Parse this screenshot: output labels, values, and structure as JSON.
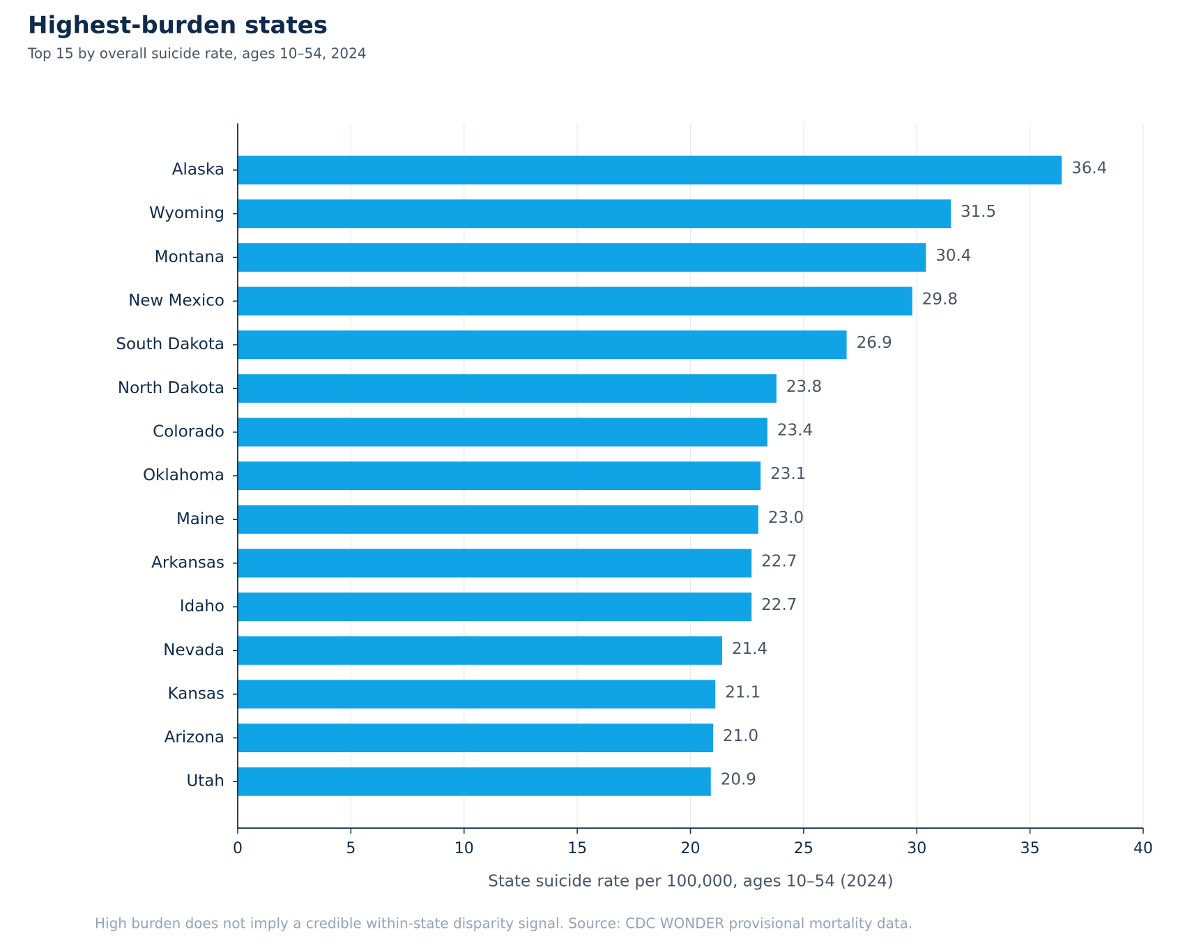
{
  "chart_data": {
    "type": "hbar",
    "title": "Highest-burden states",
    "subtitle": "Top 15 by overall suicide rate, ages 10–54, 2024",
    "x_label": "State suicide rate per 100,000, ages 10–54 (2024)",
    "footnote": "High burden does not imply a credible within-state disparity signal. Source: CDC WONDER provisional mortality data.",
    "categories": [
      "Alaska",
      "Wyoming",
      "Montana",
      "New Mexico",
      "South Dakota",
      "North Dakota",
      "Colorado",
      "Oklahoma",
      "Maine",
      "Arkansas",
      "Idaho",
      "Nevada",
      "Kansas",
      "Arizona",
      "Utah"
    ],
    "values": [
      36.4,
      31.5,
      30.4,
      29.8,
      26.9,
      23.8,
      23.4,
      23.1,
      23.0,
      22.7,
      22.7,
      21.4,
      21.1,
      21.0,
      20.9
    ],
    "value_labels": [
      "36.4",
      "31.5",
      "30.4",
      "29.8",
      "26.9",
      "23.8",
      "23.4",
      "23.1",
      "23.0",
      "22.7",
      "22.7",
      "21.4",
      "21.1",
      "21.0",
      "20.9"
    ],
    "color": "#10a3e6",
    "xlim": [
      0,
      40
    ],
    "xticks": [
      0,
      5,
      10,
      15,
      20,
      25,
      30,
      35,
      40
    ],
    "grid": true
  }
}
